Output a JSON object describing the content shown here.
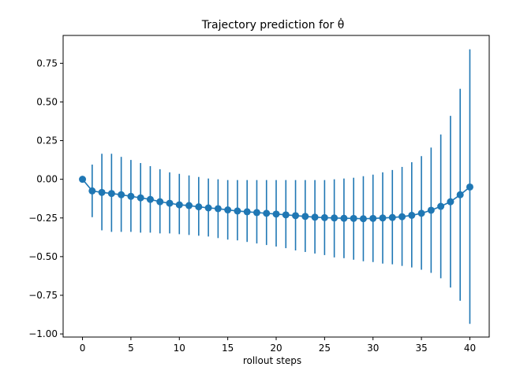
{
  "chart_data": {
    "type": "scatter",
    "title": "Trajectory prediction for θ̇",
    "xlabel": "rollout steps",
    "ylabel": "",
    "xlim": [
      -2,
      42
    ],
    "ylim": [
      -1.02,
      0.93
    ],
    "xticks": [
      0,
      5,
      10,
      15,
      20,
      25,
      30,
      35,
      40
    ],
    "yticks": [
      -1.0,
      -0.75,
      -0.5,
      -0.25,
      0.0,
      0.25,
      0.5,
      0.75
    ],
    "ytick_labels": [
      "−1.00",
      "−0.75",
      "−0.50",
      "−0.25",
      "0.00",
      "0.25",
      "0.50",
      "0.75"
    ],
    "grid": false,
    "series": [
      {
        "color": "#1f77b4",
        "style": "errorbar",
        "x": [
          0,
          1,
          2,
          3,
          4,
          5,
          6,
          7,
          8,
          9,
          10,
          11,
          12,
          13,
          14,
          15,
          16,
          17,
          18,
          19,
          20,
          21,
          22,
          23,
          24,
          25,
          26,
          27,
          28,
          29,
          30,
          31,
          32,
          33,
          34,
          35,
          36,
          37,
          38,
          39,
          40
        ],
        "y": [
          0.0,
          -0.075,
          -0.085,
          -0.092,
          -0.1,
          -0.11,
          -0.12,
          -0.13,
          -0.145,
          -0.155,
          -0.165,
          -0.17,
          -0.178,
          -0.185,
          -0.19,
          -0.198,
          -0.205,
          -0.21,
          -0.215,
          -0.22,
          -0.225,
          -0.23,
          -0.235,
          -0.24,
          -0.245,
          -0.248,
          -0.25,
          -0.252,
          -0.253,
          -0.255,
          -0.253,
          -0.25,
          -0.247,
          -0.242,
          -0.233,
          -0.22,
          -0.2,
          -0.175,
          -0.145,
          -0.1,
          -0.05
        ],
        "upper": [
          0.0,
          0.095,
          0.165,
          0.165,
          0.145,
          0.125,
          0.105,
          0.085,
          0.065,
          0.045,
          0.035,
          0.025,
          0.015,
          0.005,
          0.0,
          -0.005,
          -0.005,
          -0.005,
          -0.005,
          -0.005,
          -0.005,
          -0.005,
          -0.005,
          -0.005,
          -0.005,
          -0.005,
          0.0,
          0.005,
          0.01,
          0.02,
          0.03,
          0.045,
          0.06,
          0.08,
          0.11,
          0.15,
          0.205,
          0.29,
          0.41,
          0.585,
          0.84
        ],
        "lower": [
          0.0,
          -0.245,
          -0.33,
          -0.34,
          -0.34,
          -0.34,
          -0.345,
          -0.345,
          -0.35,
          -0.35,
          -0.355,
          -0.36,
          -0.365,
          -0.37,
          -0.38,
          -0.39,
          -0.395,
          -0.405,
          -0.415,
          -0.425,
          -0.435,
          -0.445,
          -0.46,
          -0.47,
          -0.48,
          -0.49,
          -0.505,
          -0.51,
          -0.52,
          -0.53,
          -0.535,
          -0.545,
          -0.55,
          -0.56,
          -0.57,
          -0.585,
          -0.605,
          -0.64,
          -0.7,
          -0.785,
          -0.935
        ]
      }
    ]
  }
}
